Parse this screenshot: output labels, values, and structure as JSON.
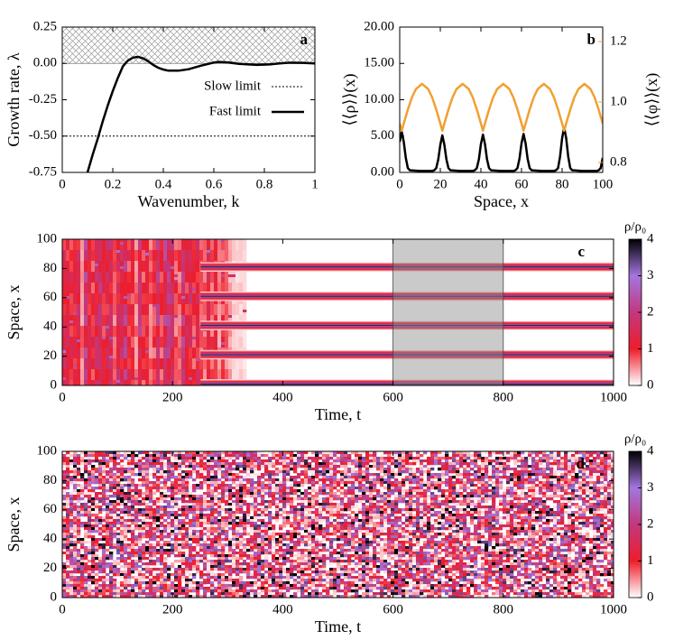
{
  "chart_data": [
    {
      "type": "line",
      "label": "a",
      "xlabel": "Wavenumber, k",
      "ylabel": "Growth rate, λ",
      "xlim": [
        0,
        1
      ],
      "ylim": [
        -0.75,
        0.25
      ],
      "xticks": [
        0,
        0.2,
        0.4,
        0.6,
        0.8,
        1
      ],
      "yticks": [
        {
          "value": 0.25,
          "label": "0.25"
        },
        {
          "value": 0,
          "label": "0.00"
        },
        {
          "value": -0.25,
          "label": "-0.25"
        },
        {
          "value": -0.5,
          "label": "-0.50"
        },
        {
          "value": -0.75,
          "label": "-0.75"
        }
      ],
      "hatch_above": 0,
      "legend": "upper right",
      "series": [
        {
          "name": "Slow limit",
          "color": "#000000",
          "linestyle": "dotted",
          "x": [
            0,
            1
          ],
          "values": [
            -0.5,
            -0.5
          ]
        },
        {
          "name": "Fast limit",
          "color": "#000000",
          "linestyle": "solid",
          "x": [
            0.1,
            0.12,
            0.14,
            0.16,
            0.18,
            0.2,
            0.22,
            0.24,
            0.26,
            0.28,
            0.3,
            0.32,
            0.34,
            0.36,
            0.38,
            0.4,
            0.42,
            0.46,
            0.5,
            0.55,
            0.6,
            0.62,
            0.66,
            0.7,
            0.77,
            0.82,
            0.86,
            0.9,
            0.95,
            1
          ],
          "values": [
            -0.75,
            -0.63,
            -0.52,
            -0.4,
            -0.29,
            -0.19,
            -0.1,
            -0.02,
            0.02,
            0.04,
            0.045,
            0.035,
            0.015,
            -0.01,
            -0.03,
            -0.042,
            -0.05,
            -0.05,
            -0.04,
            -0.015,
            0.006,
            0.01,
            0.006,
            -0.003,
            -0.01,
            -0.007,
            0.0,
            0.005,
            0.004,
            0.0
          ]
        }
      ]
    },
    {
      "type": "line",
      "label": "b",
      "xlabel": "Space, x",
      "ylabel": "⟨⟨ρ⟩⟩(x)",
      "y2label": "⟨⟨φ⟩⟩(x)",
      "y2color": "#f0a030",
      "xlim": [
        0,
        100
      ],
      "ylim": [
        0,
        20
      ],
      "y2lim": [
        0.767,
        1.248
      ],
      "xticks": [
        0,
        20,
        40,
        60,
        80,
        100
      ],
      "yticks": [
        {
          "value": 0,
          "label": "0.00"
        },
        {
          "value": 5,
          "label": "5.00"
        },
        {
          "value": 10,
          "label": "10.00"
        },
        {
          "value": 15,
          "label": "15.00"
        },
        {
          "value": 20,
          "label": "20.00"
        }
      ],
      "y2ticks": [
        0.8,
        {
          "value": 1,
          "label": "1.0"
        },
        1.2
      ],
      "series": [
        {
          "color": "#000000",
          "axis": "y",
          "x": [
            0,
            1,
            2,
            3,
            4,
            5,
            10,
            15,
            16,
            17,
            18,
            19,
            20,
            21,
            22,
            23,
            24,
            25,
            30,
            35,
            36,
            37,
            38,
            39,
            40,
            41,
            42,
            43,
            44,
            45,
            50,
            55,
            56,
            57,
            58,
            59,
            60,
            61,
            62,
            63,
            64,
            65,
            70,
            75,
            76,
            77,
            78,
            79,
            80,
            81,
            82,
            83,
            84,
            85,
            90,
            95,
            96,
            97,
            98,
            99,
            100
          ],
          "values": [
            4.2,
            5.6,
            4.2,
            2.0,
            0.6,
            0.3,
            0.2,
            0.2,
            0.2,
            0.3,
            0.6,
            1.8,
            3.8,
            5.1,
            3.8,
            1.8,
            0.6,
            0.3,
            0.2,
            0.2,
            0.2,
            0.3,
            0.6,
            1.8,
            3.9,
            5.2,
            3.9,
            1.8,
            0.6,
            0.3,
            0.2,
            0.2,
            0.2,
            0.3,
            0.6,
            1.9,
            4.0,
            5.3,
            4.0,
            1.9,
            0.6,
            0.3,
            0.2,
            0.2,
            0.2,
            0.3,
            0.6,
            2.2,
            4.7,
            6.2,
            4.7,
            2.2,
            0.6,
            0.3,
            0.2,
            0.2,
            0.2,
            0.2,
            0.3,
            0.6,
            2.0
          ]
        },
        {
          "color": "#f0a030",
          "axis": "y2",
          "x": [
            0,
            1,
            2,
            4,
            6,
            8,
            11,
            14,
            16,
            18,
            20,
            21,
            22,
            24,
            26,
            28,
            31,
            34,
            36,
            38,
            40,
            41,
            42,
            44,
            46,
            48,
            51,
            54,
            56,
            58,
            60,
            61,
            62,
            64,
            66,
            68,
            71,
            74,
            76,
            78,
            80,
            81,
            82,
            84,
            86,
            88,
            91,
            94,
            96,
            98,
            100
          ],
          "values": [
            0.929,
            0.905,
            0.929,
            0.975,
            1.015,
            1.043,
            1.06,
            1.043,
            1.015,
            0.975,
            0.929,
            0.905,
            0.929,
            0.975,
            1.015,
            1.043,
            1.06,
            1.043,
            1.015,
            0.975,
            0.929,
            0.905,
            0.929,
            0.975,
            1.015,
            1.043,
            1.06,
            1.043,
            1.015,
            0.975,
            0.929,
            0.905,
            0.929,
            0.975,
            1.015,
            1.043,
            1.06,
            1.043,
            1.015,
            0.975,
            0.929,
            0.905,
            0.929,
            0.975,
            1.015,
            1.043,
            1.06,
            1.043,
            1.015,
            0.975,
            0.929
          ]
        }
      ]
    },
    {
      "type": "heatmap",
      "label": "c",
      "xlabel": "Time, t",
      "ylabel": "Space, x",
      "colorbar_label": "ρ/ρ₀",
      "xlim": [
        0,
        1000
      ],
      "ylim": [
        0,
        100
      ],
      "xticks": [
        0,
        200,
        400,
        600,
        800,
        1000
      ],
      "yticks": [
        0,
        20,
        40,
        60,
        80,
        100
      ],
      "clim": [
        0,
        4
      ],
      "cticks": [
        0,
        1,
        2,
        3,
        4
      ],
      "colors": [
        "#ffffff",
        "#ee1d2a",
        "#c2387e",
        "#a376e0",
        "#000000"
      ],
      "pattern": "stripes",
      "stripes": [
        1,
        21,
        41,
        61,
        81
      ],
      "stripe_start": 300,
      "highlight": [
        600,
        800
      ]
    },
    {
      "type": "heatmap",
      "label": "d",
      "xlabel": "Time, t",
      "ylabel": "Space, x",
      "colorbar_label": "ρ/ρ₀",
      "xlim": [
        0,
        1000
      ],
      "ylim": [
        0,
        100
      ],
      "xticks": [
        0,
        200,
        400,
        600,
        800,
        1000
      ],
      "yticks": [
        0,
        20,
        40,
        60,
        80,
        100
      ],
      "clim": [
        0,
        4
      ],
      "cticks": [
        0,
        1,
        2,
        3,
        4
      ],
      "colors": [
        "#ffffff",
        "#ee1d2a",
        "#c2387e",
        "#a376e0",
        "#000000"
      ],
      "pattern": "noise"
    }
  ]
}
